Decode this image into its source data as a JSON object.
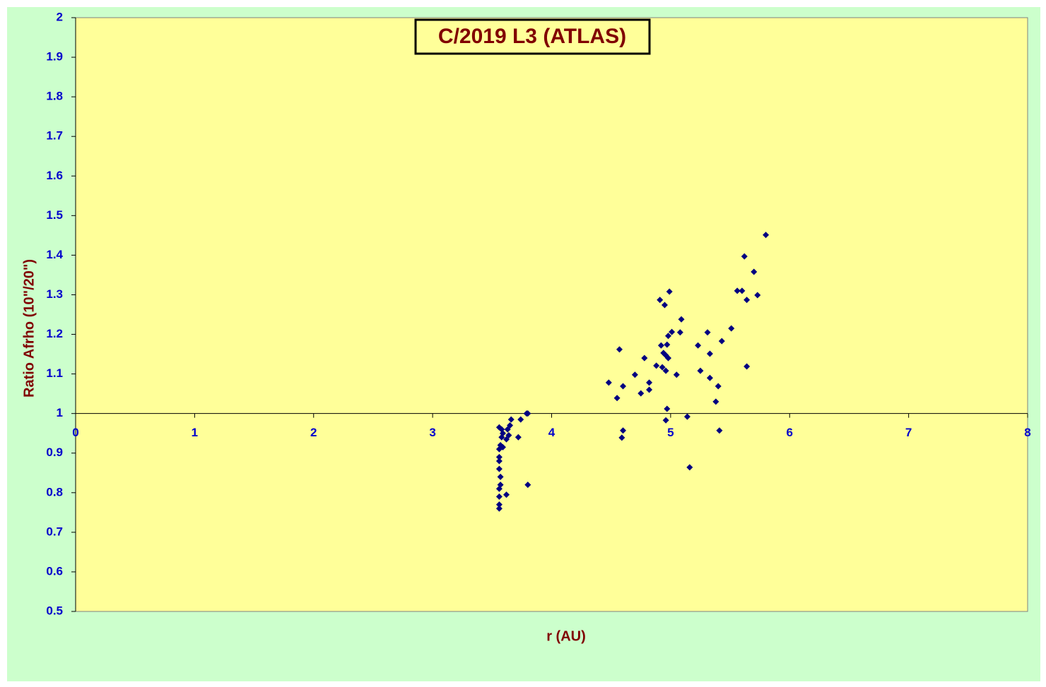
{
  "chart_data": {
    "type": "scatter",
    "title": "C/2019 L3 (ATLAS)",
    "x_label": "r (AU)",
    "y_label": "Ratio Afrho (10\"/20\")",
    "color": "#000080",
    "x_axis_at": 1,
    "xlim": [
      0,
      8
    ],
    "xticks": [
      0,
      1,
      2,
      3,
      4,
      5,
      6,
      7,
      8
    ],
    "ylim": [
      0.5,
      2
    ],
    "yticks": [
      0.5,
      0.6,
      0.7,
      0.8,
      0.9,
      1,
      1.1,
      1.2,
      1.3,
      1.4,
      1.5,
      1.6,
      1.7,
      1.8,
      1.9,
      2
    ],
    "x": [
      3.56,
      3.56,
      3.56,
      3.56,
      3.57,
      3.57,
      3.56,
      3.56,
      3.56,
      3.56,
      3.57,
      3.58,
      3.59,
      3.58,
      3.56,
      3.62,
      3.59,
      3.62,
      3.64,
      3.63,
      3.65,
      3.66,
      3.74,
      3.72,
      3.8,
      3.79,
      3.8,
      4.48,
      4.55,
      4.57,
      4.6,
      4.6,
      4.59,
      4.7,
      4.75,
      4.78,
      4.82,
      4.82,
      4.88,
      4.91,
      4.92,
      4.93,
      4.94,
      4.95,
      4.96,
      4.96,
      4.97,
      4.98,
      4.96,
      4.97,
      4.98,
      4.99,
      5.01,
      5.05,
      5.08,
      5.09,
      5.14,
      5.16,
      5.23,
      5.25,
      5.31,
      5.33,
      5.33,
      5.38,
      5.4,
      5.41,
      5.43,
      5.51,
      5.56,
      5.6,
      5.62,
      5.64,
      5.64,
      5.7,
      5.73,
      5.8
    ],
    "values": [
      0.76,
      0.77,
      0.79,
      0.81,
      0.82,
      0.84,
      0.86,
      0.88,
      0.89,
      0.91,
      0.92,
      0.94,
      0.95,
      0.96,
      0.965,
      0.795,
      0.915,
      0.935,
      0.945,
      0.96,
      0.97,
      0.985,
      0.985,
      0.94,
      1.0,
      1.0,
      0.82,
      1.078,
      1.039,
      1.162,
      1.069,
      0.957,
      0.939,
      1.098,
      1.051,
      1.14,
      1.078,
      1.06,
      1.121,
      1.287,
      1.172,
      1.117,
      1.153,
      1.274,
      1.108,
      1.147,
      1.174,
      1.14,
      0.983,
      1.012,
      1.196,
      1.308,
      1.206,
      1.098,
      1.205,
      1.238,
      0.992,
      0.864,
      1.172,
      1.108,
      1.205,
      1.151,
      1.09,
      1.03,
      1.069,
      0.957,
      1.183,
      1.215,
      1.31,
      1.31,
      1.397,
      1.119,
      1.287,
      1.358,
      1.299,
      1.451
    ]
  }
}
